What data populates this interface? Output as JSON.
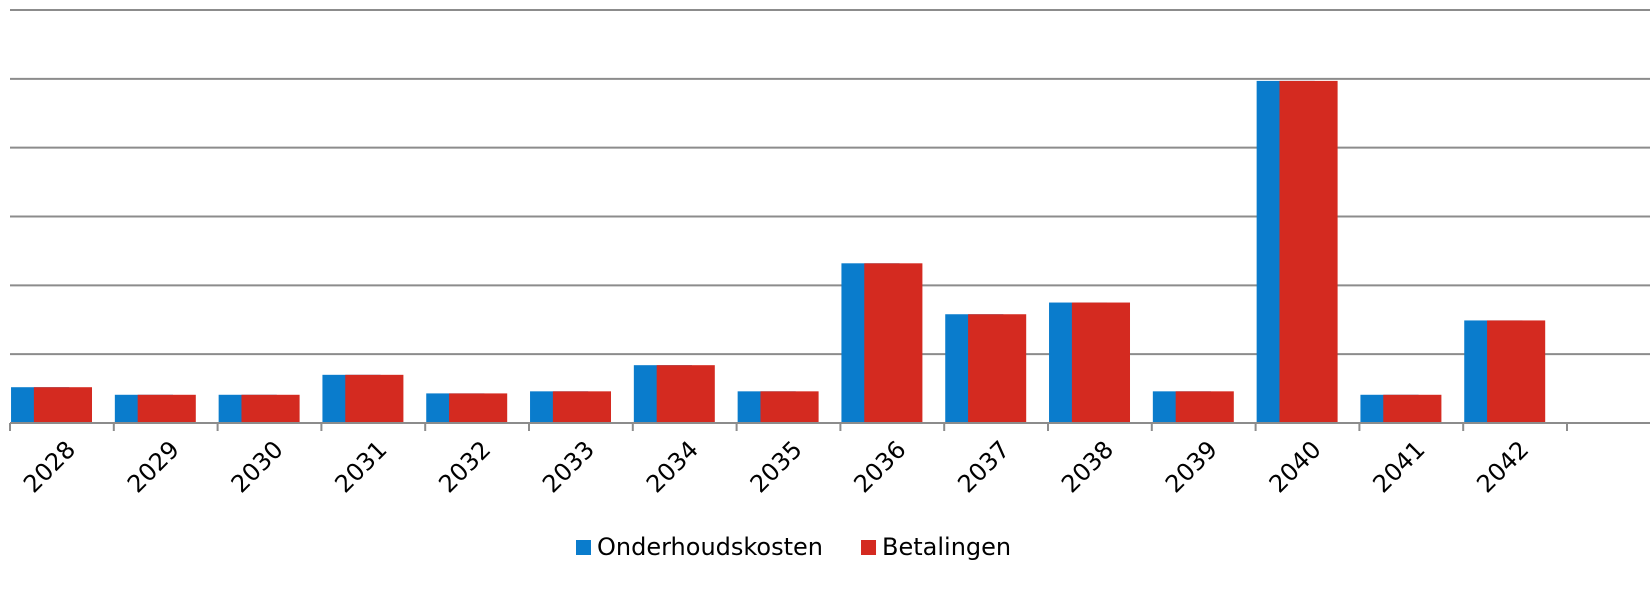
{
  "chart_data": {
    "type": "bar",
    "categories": [
      "2028",
      "2029",
      "2030",
      "2031",
      "2032",
      "2033",
      "2034",
      "2035",
      "2036",
      "2037",
      "2038",
      "2039",
      "2040",
      "2041",
      "2042"
    ],
    "series": [
      {
        "name": "Onderhoudskosten",
        "color": "#0a7ccc",
        "values": [
          0.52,
          0.41,
          0.41,
          0.7,
          0.43,
          0.46,
          0.84,
          0.46,
          2.32,
          1.58,
          1.75,
          0.46,
          4.97,
          0.41,
          1.49
        ]
      },
      {
        "name": "Betalingen",
        "color": "#d42a20",
        "values": [
          0.52,
          0.41,
          0.41,
          0.7,
          0.43,
          0.46,
          0.84,
          0.46,
          2.32,
          1.58,
          1.75,
          0.46,
          4.97,
          0.41,
          1.49
        ]
      }
    ],
    "ylim": [
      0,
      6
    ],
    "yticks": [
      0,
      1,
      2,
      3,
      4,
      5,
      6
    ],
    "grid": true,
    "legend": "bottom"
  }
}
